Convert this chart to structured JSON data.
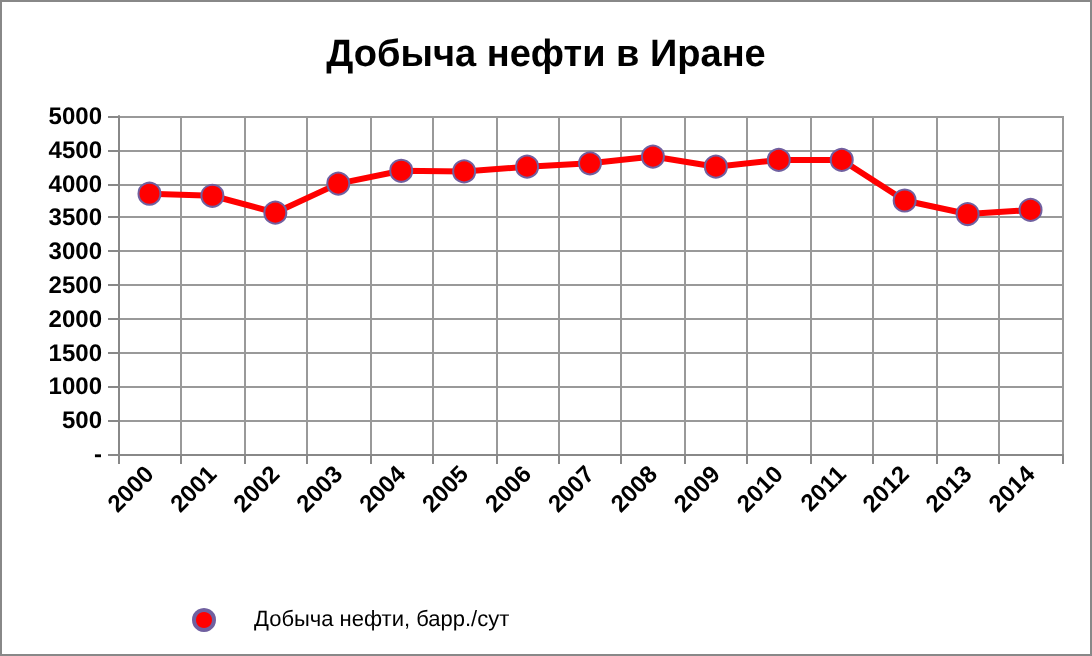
{
  "chart_data": {
    "type": "line",
    "title": "Добыча нефти в Иране",
    "categories": [
      "2000",
      "2001",
      "2002",
      "2003",
      "2004",
      "2005",
      "2006",
      "2007",
      "2008",
      "2009",
      "2010",
      "2011",
      "2012",
      "2013",
      "2014"
    ],
    "series": [
      {
        "name": "Добыча нефти, барр./сут",
        "color": "#ff0000",
        "values": [
          3850,
          3820,
          3570,
          4000,
          4190,
          4180,
          4250,
          4300,
          4400,
          4250,
          4350,
          4350,
          3750,
          3550,
          3610
        ]
      }
    ],
    "ylim": [
      0,
      5000
    ],
    "yticks": [
      {
        "value": 0,
        "label": "-"
      },
      500,
      1000,
      1500,
      2000,
      2500,
      3000,
      3500,
      4000,
      4500,
      5000
    ],
    "grid": true,
    "legend": "bottom",
    "marker": "circle",
    "line_style": "solid"
  }
}
